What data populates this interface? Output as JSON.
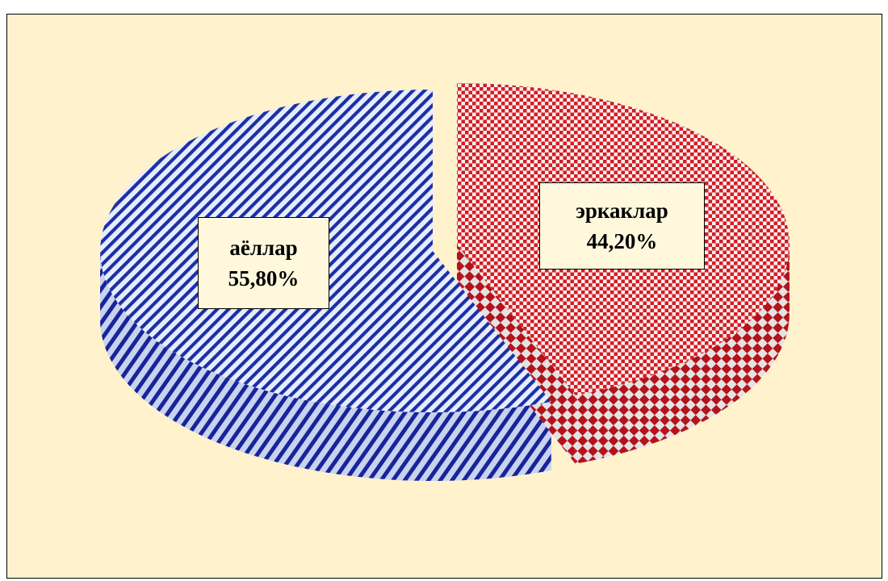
{
  "chart_data": {
    "type": "pie",
    "style": "3d-exploded",
    "series": [
      {
        "values": [
          55.8,
          44.2
        ],
        "labels": [
          "аёллар",
          "эркаклар"
        ],
        "data_labels": [
          "55,80%",
          "44,20%"
        ]
      }
    ],
    "colors": {
      "women_stripe": "#1a2fa8",
      "women_light": "#e6ecfa",
      "men_pattern": "#d11d25",
      "men_light": "#fdeaea",
      "background": "#fff2cc"
    }
  }
}
